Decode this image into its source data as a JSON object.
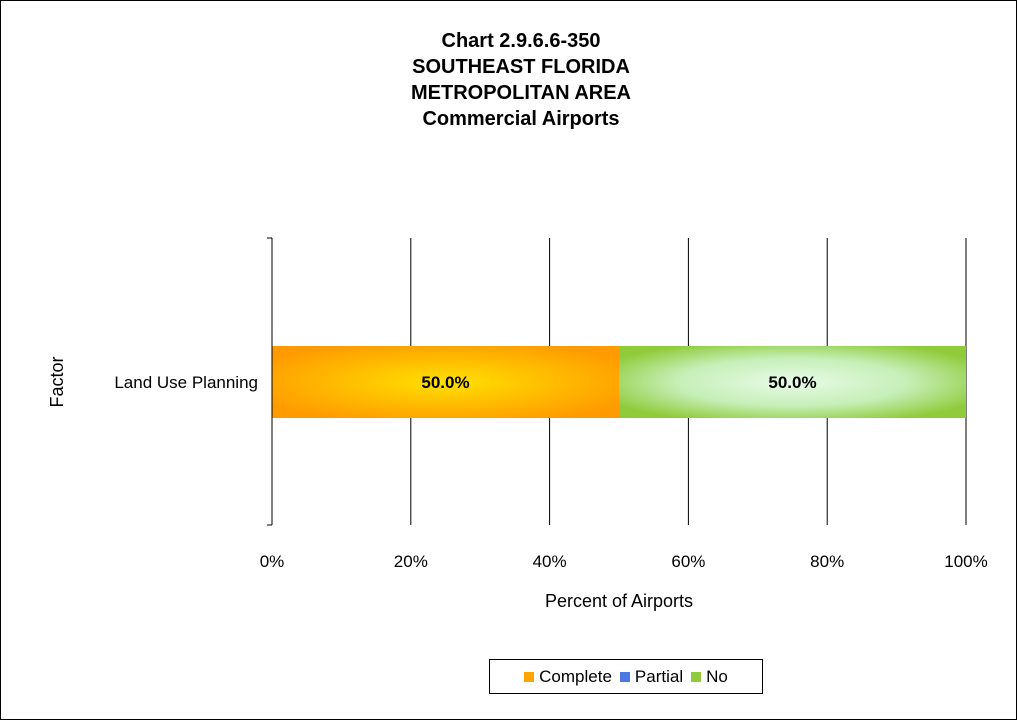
{
  "title_lines": [
    "Chart 2.9.6.6-350",
    "SOUTHEAST FLORIDA",
    "METROPOLITAN AREA",
    "Commercial Airports"
  ],
  "colors": {
    "Complete": "#FFA500",
    "Partial": "#4A78E0",
    "No": "#8FCB3A",
    "grid": "#000000"
  },
  "chart_data": {
    "type": "bar",
    "orientation": "horizontal",
    "stacked": "percent",
    "title": "Chart 2.9.6.6-350 SOUTHEAST FLORIDA METROPOLITAN AREA Commercial Airports",
    "categories": [
      "Land Use Planning"
    ],
    "series": [
      {
        "name": "Complete",
        "values": [
          50.0
        ],
        "label": "50.0%"
      },
      {
        "name": "Partial",
        "values": [
          0.0
        ],
        "label": ""
      },
      {
        "name": "No",
        "values": [
          50.0
        ],
        "label": "50.0%"
      }
    ],
    "xlabel": "Percent of Airports",
    "ylabel": "Factor",
    "xlim": [
      0,
      100
    ],
    "x_ticks": [
      "0%",
      "20%",
      "40%",
      "60%",
      "80%",
      "100%"
    ],
    "grid": true,
    "legend_position": "bottom",
    "legend": [
      "Complete",
      "Partial",
      "No"
    ]
  }
}
